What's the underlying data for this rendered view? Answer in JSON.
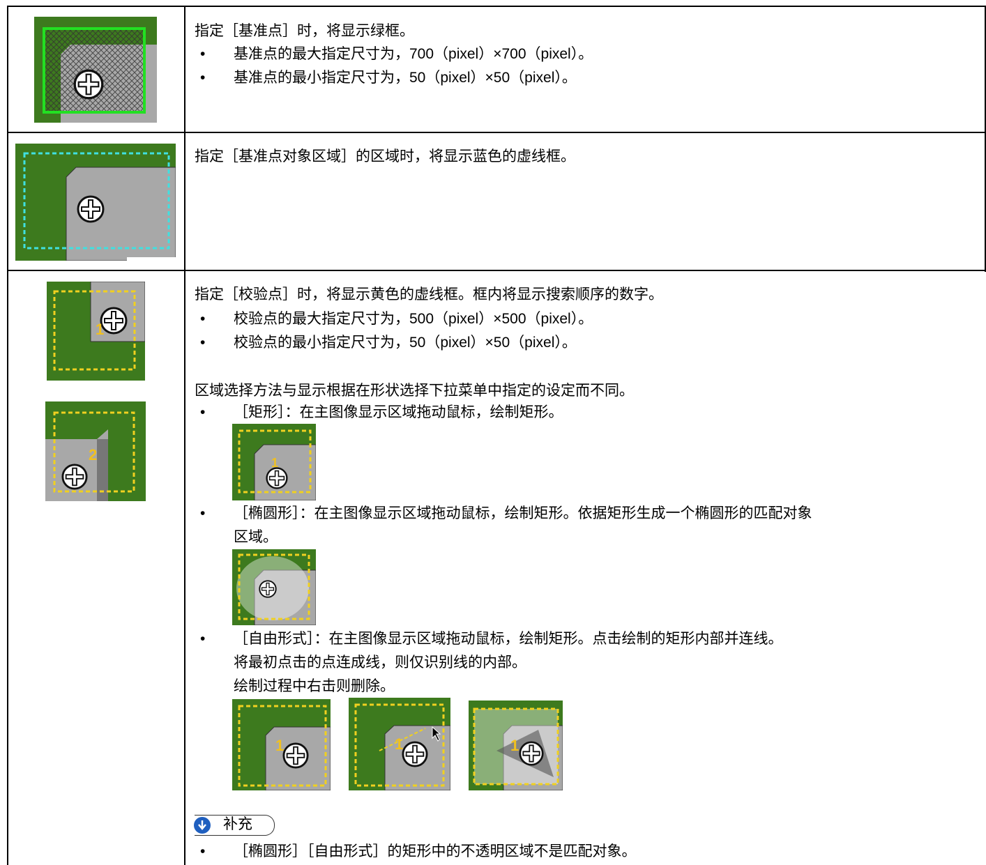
{
  "table": {
    "rows": [
      {
        "text": "指定［基准点］时，将显示绿框。",
        "bullets": [
          "基准点的最大指定尺寸为，700（pixel）×700（pixel）。",
          "基准点的最小指定尺寸为，50（pixel）×50（pixel）。"
        ]
      },
      {
        "text": "指定［基准点对象区域］的区域时，将显示蓝色的虚线框。"
      },
      {
        "figure_labels": [
          "1",
          "2"
        ],
        "text": "指定［校验点］时，将显示黄色的虚线框。框内将显示搜索顺序的数字。",
        "bullets": [
          "校验点的最大指定尺寸为，500（pixel）×500（pixel）。",
          "校验点的最小指定尺寸为，50（pixel）×50（pixel）。"
        ],
        "paragraph": "区域选择方法与显示根据在形状选择下拉菜单中指定的设定而不同。",
        "methods": [
          {
            "lines": [
              "［矩形］：在主图像显示区域拖动鼠标，绘制矩形。"
            ],
            "figure_labels": [
              "1"
            ]
          },
          {
            "lines": [
              "［椭圆形］：在主图像显示区域拖动鼠标，绘制矩形。依据矩形生成一个椭圆形的匹配对象",
              "区域。"
            ]
          },
          {
            "lines": [
              "［自由形式］：在主图像显示区域拖动鼠标，绘制矩形。点击绘制的矩形内部并连线。",
              "将最初点击的点连成线，则仅识别线的内部。",
              "绘制过程中右击则删除。"
            ],
            "figure_labels": [
              "1",
              "1",
              "1"
            ]
          }
        ],
        "note": {
          "title": "补充",
          "bullets": [
            "［椭圆形］［自由形式］的矩形中的不透明区域不是匹配对象。"
          ]
        }
      }
    ]
  }
}
